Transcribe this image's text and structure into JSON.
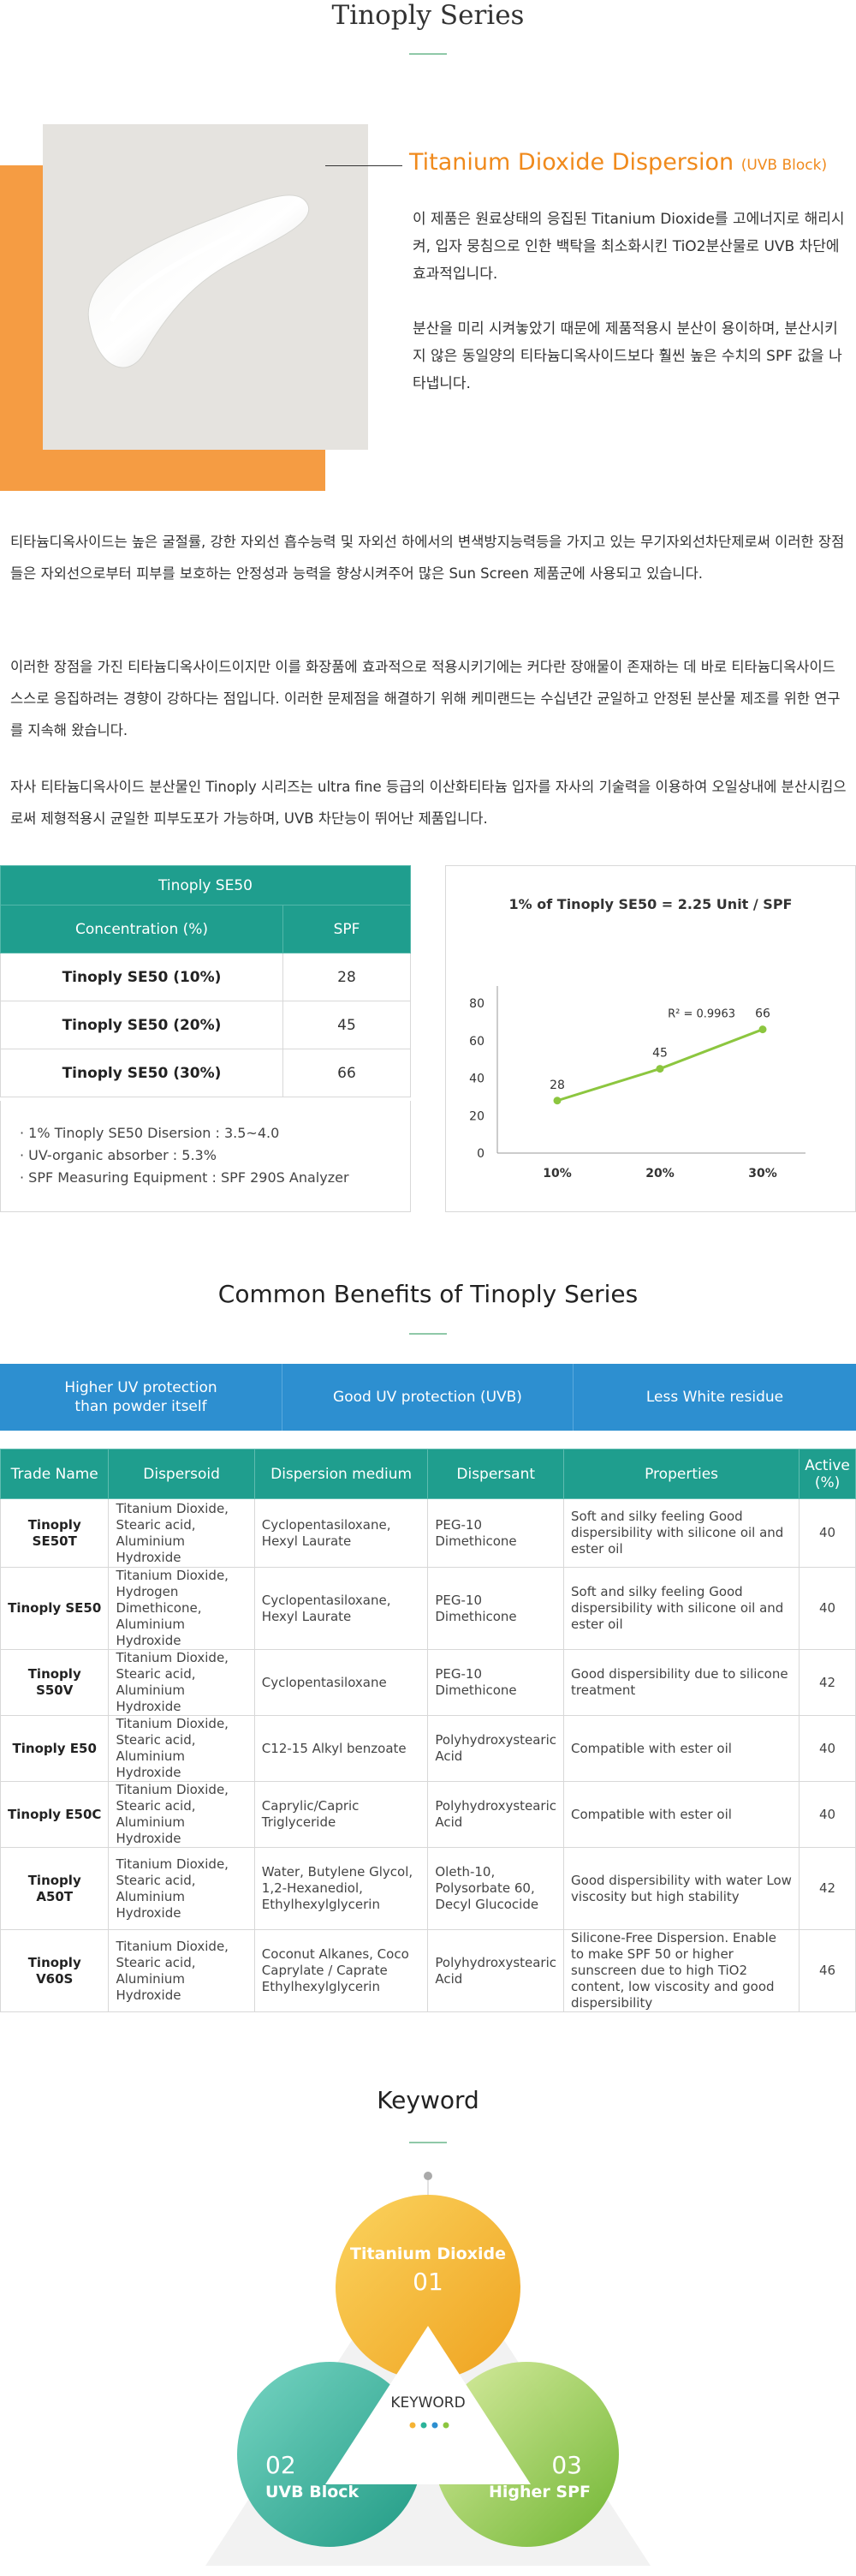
{
  "header": {
    "title": "Tinoply Series"
  },
  "intro": {
    "heading": "Titanium Dioxide Dispersion",
    "heading_tag": "(UVB Block)",
    "text1": "이 제품은 원료상태의 응집된 Titanium Dioxide를 고에너지로 해리시켜, 입자 뭉침으로 인한 백탁을 최소화시킨 TiO2분산물로 UVB 차단에 효과적입니다.",
    "text2": "분산을 미리 시켜놓았기 때문에 제품적용시 분산이 용이하며, 분산시키지 않은 동일양의 티타늄디옥사이드보다 훨씬 높은 수치의 SPF 값을 나타냅니다."
  },
  "paragraphs": {
    "p1": "티타늄디옥사이드는 높은 굴절률, 강한 자외선 흡수능력 및 자외선 하에서의 변색방지능력등을 가지고 있는 무기자외선차단제로써 이러한 장점들은 자외선으로부터 피부를 보호하는 안정성과 능력을 향상시켜주어 많은 Sun Screen 제품군에 사용되고 있습니다.",
    "p2": "이러한 장점을 가진 티타늄디옥사이드이지만 이를 화장품에 효과적으로 적용시키기에는 커다란 장애물이 존재하는 데 바로 티타늄디옥사이드 스스로 응집하려는 경향이 강하다는 점입니다. 이러한 문제점을 해결하기 위해 케미랜드는 수십년간 균일하고 안정된 분산물 제조를 위한 연구를 지속해 왔습니다.",
    "p3": "자사 티타늄디옥사이드 분산물인 Tinoply 시리즈는 ultra fine 등급의 이산화티타늄 입자를 자사의 기술력을 이용하여 오일상내에 분산시킴으로써 제형적용시 균일한 피부도포가 가능하며, UVB 차단능이 뛰어난 제품입니다."
  },
  "spf_table": {
    "title": "Tinoply SE50",
    "col1": "Concentration (%)",
    "col2": "SPF",
    "rows": [
      {
        "name": "Tinoply SE50 (10%)",
        "spf": "28"
      },
      {
        "name": "Tinoply SE50 (20%)",
        "spf": "45"
      },
      {
        "name": "Tinoply SE50 (30%)",
        "spf": "66"
      }
    ],
    "notes": [
      "· 1% Tinoply SE50 Disersion : 3.5~4.0",
      "· UV-organic absorber : 5.3%",
      "· SPF Measuring Equipment : SPF 290S Analyzer"
    ]
  },
  "chart_data": {
    "type": "line",
    "title": "1% of Tinoply SE50 = 2.25 Unit / SPF",
    "categories": [
      "10%",
      "20%",
      "30%"
    ],
    "values": [
      28,
      45,
      66
    ],
    "data_labels": [
      "28",
      "45",
      "66"
    ],
    "annotation": "R² = 0.9963",
    "yticks": [
      "0",
      "20",
      "40",
      "60",
      "80"
    ],
    "ylim": [
      0,
      80
    ],
    "grid": false,
    "line_color": "#8cc63f"
  },
  "benefits_section": {
    "title": "Common Benefits of Tinoply Series",
    "items": [
      "Higher UV protection than powder itself",
      "Good UV protection (UVB)",
      "Less White residue"
    ]
  },
  "products_table": {
    "headers": [
      "Trade Name",
      "Dispersoid",
      "Dispersion medium",
      "Dispersant",
      "Properties",
      "Active (%)"
    ],
    "rows": [
      [
        "Tinoply SE50T",
        "Titanium Dioxide, Stearic acid, Aluminium Hydroxide",
        "Cyclopentasiloxane, Hexyl Laurate",
        "PEG-10 Dimethicone",
        "Soft and silky feeling Good dispersibility with silicone oil and ester oil",
        "40"
      ],
      [
        "Tinoply SE50",
        "Titanium Dioxide, Hydrogen Dimethicone, Aluminium Hydroxide",
        "Cyclopentasiloxane, Hexyl Laurate",
        "PEG-10 Dimethicone",
        "Soft and silky feeling Good dispersibility with silicone oil and ester oil",
        "40"
      ],
      [
        "Tinoply S50V",
        "Titanium Dioxide, Stearic acid, Aluminium Hydroxide",
        "Cyclopentasiloxane",
        "PEG-10 Dimethicone",
        "Good dispersibility due to silicone treatment",
        "42"
      ],
      [
        "Tinoply E50",
        "Titanium Dioxide, Stearic acid, Aluminium Hydroxide",
        "C12-15 Alkyl benzoate",
        "Polyhydroxystearic Acid",
        "Compatible with ester oil",
        "40"
      ],
      [
        "Tinoply E50C",
        "Titanium Dioxide, Stearic acid, Aluminium Hydroxide",
        "Caprylic/Capric Triglyceride",
        "Polyhydroxystearic Acid",
        "Compatible with ester oil",
        "40"
      ],
      [
        "Tinoply A50T",
        "Titanium Dioxide, Stearic acid, Aluminium Hydroxide",
        "Water, Butylene Glycol, 1,2-Hexanediol, Ethylhexylglycerin",
        "Oleth-10, Polysorbate 60, Decyl Glucocide",
        "Good dispersibility with water Low viscosity but high stability",
        "42"
      ],
      [
        "Tinoply V60S",
        "Titanium Dioxide, Stearic acid, Aluminium Hydroxide",
        "Coconut Alkanes, Coco Caprylate / Caprate Ethylhexylglycerin",
        "Polyhydroxystearic Acid",
        "Silicone-Free Dispersion. Enable to make SPF 50 or higher sunscreen due to high TiO2 content, low viscosity and good dispersibility",
        "46"
      ]
    ]
  },
  "keyword": {
    "title": "Keyword",
    "center": "KEYWORD",
    "items": [
      {
        "num": "01",
        "label": "Titanium Dioxide"
      },
      {
        "num": "02",
        "label": "UVB Block"
      },
      {
        "num": "03",
        "label": "Higher SPF"
      }
    ]
  }
}
